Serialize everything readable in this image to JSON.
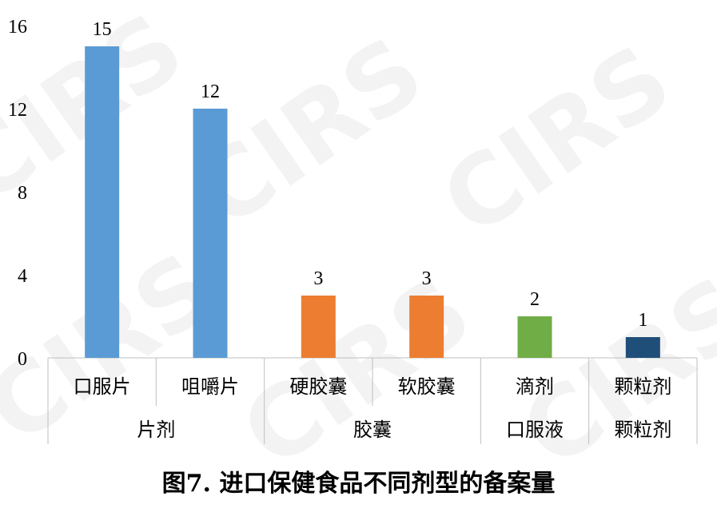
{
  "chart_data": {
    "type": "bar",
    "title": "图7. 进口保健食品不同剂型的备案量",
    "xlabel": "",
    "ylabel": "",
    "ylim": [
      0,
      16
    ],
    "y_ticks": [
      "0",
      "4",
      "8",
      "12",
      "16"
    ],
    "grid": false,
    "legend": "none",
    "categories": [
      "口服片",
      "咀嚼片",
      "硬胶囊",
      "软胶囊",
      "滴剂",
      "颗粒剂"
    ],
    "values": [
      15,
      12,
      3,
      3,
      2,
      1
    ],
    "data_labels": [
      "15",
      "12",
      "3",
      "3",
      "2",
      "1"
    ],
    "bar_colors": [
      "#5b9bd5",
      "#5b9bd5",
      "#ed7d31",
      "#ed7d31",
      "#70ad47",
      "#1f4e79"
    ],
    "groups": [
      {
        "label": "片剂",
        "categories": [
          "口服片",
          "咀嚼片"
        ]
      },
      {
        "label": "胶囊",
        "categories": [
          "硬胶囊",
          "软胶囊"
        ]
      },
      {
        "label": "口服液",
        "categories": [
          "滴剂"
        ]
      },
      {
        "label": "颗粒剂",
        "categories": [
          "颗粒剂"
        ]
      }
    ]
  },
  "watermark": "CIRS"
}
